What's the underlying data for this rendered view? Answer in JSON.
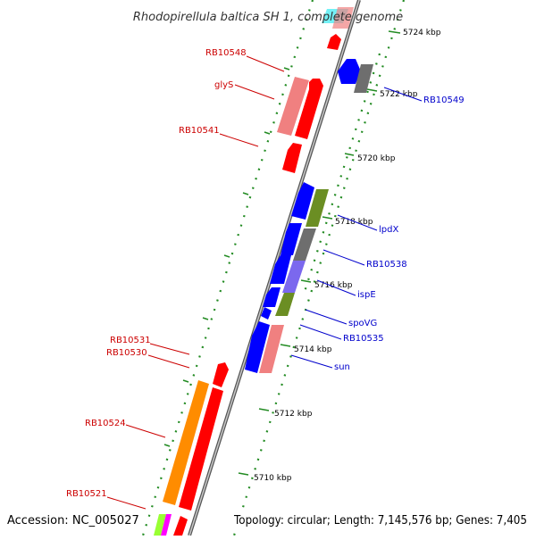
{
  "header": {
    "title": "Rhodopirellula baltica SH 1, complete genome"
  },
  "footer": {
    "accession": "Accession: NC_005027",
    "summary": "Topology: circular; Length: 7,145,576 bp; Genes: 7,405"
  },
  "colors": {
    "label_left": "#cc0000",
    "label_right": "#0000cc",
    "backbone": "#7a7a7a",
    "tick": "#228B22",
    "red": "#ff0000",
    "pink": "#f08080",
    "blue": "#0000ff",
    "gray": "#6e6e6e",
    "olive": "#6b8e23",
    "slate": "#7b68ee",
    "orange": "#ff8c00",
    "cyan": "#00e5ee",
    "magenta": "#ff00ff",
    "lime": "#99ff33"
  },
  "ticks": [
    {
      "label": "5724 kbp"
    },
    {
      "label": "5722 kbp"
    },
    {
      "label": "5720 kbp"
    },
    {
      "label": "5718 kbp"
    },
    {
      "label": "5716 kbp"
    },
    {
      "label": "5714 kbp"
    },
    {
      "label": "5712 kbp"
    },
    {
      "label": "5710 kbp"
    }
  ],
  "gene_labels": [
    {
      "text": "RB10548",
      "side": "left"
    },
    {
      "text": "glyS",
      "side": "left"
    },
    {
      "text": "RB10541",
      "side": "left"
    },
    {
      "text": "RB10531",
      "side": "left"
    },
    {
      "text": "RB10530",
      "side": "left"
    },
    {
      "text": "RB10524",
      "side": "left"
    },
    {
      "text": "RB10521",
      "side": "left"
    },
    {
      "text": "RB10549",
      "side": "right"
    },
    {
      "text": "lpdX",
      "side": "right"
    },
    {
      "text": "RB10538",
      "side": "right"
    },
    {
      "text": "ispE",
      "side": "right"
    },
    {
      "text": "spoVG",
      "side": "right"
    },
    {
      "text": "RB10535",
      "side": "right"
    },
    {
      "text": "sun",
      "side": "right"
    }
  ],
  "features": [
    {
      "name": "RB10549 gene block",
      "color": "blue",
      "strand": "forward"
    },
    {
      "name": "RB10549 neighbor block",
      "color": "gray",
      "strand": "forward"
    },
    {
      "name": "RB10548 gene block",
      "color": "pink",
      "strand": "forward"
    },
    {
      "name": "glyS gene block",
      "color": "red",
      "strand": "reverse"
    },
    {
      "name": "RB10541 gene block",
      "color": "red",
      "strand": "reverse"
    },
    {
      "name": "lpdX gene block",
      "color": "olive",
      "strand": "forward"
    },
    {
      "name": "RB10538 gene block",
      "color": "gray",
      "strand": "forward"
    },
    {
      "name": "ispE gene block",
      "color": "slate",
      "strand": "forward"
    },
    {
      "name": "spoVG gene block",
      "color": "olive",
      "strand": "forward"
    },
    {
      "name": "sun gene block",
      "color": "pink",
      "strand": "forward"
    },
    {
      "name": "RB10530 gene block",
      "color": "red",
      "strand": "reverse"
    },
    {
      "name": "RB10524 gene block",
      "color": "orange",
      "strand": "forward"
    }
  ]
}
